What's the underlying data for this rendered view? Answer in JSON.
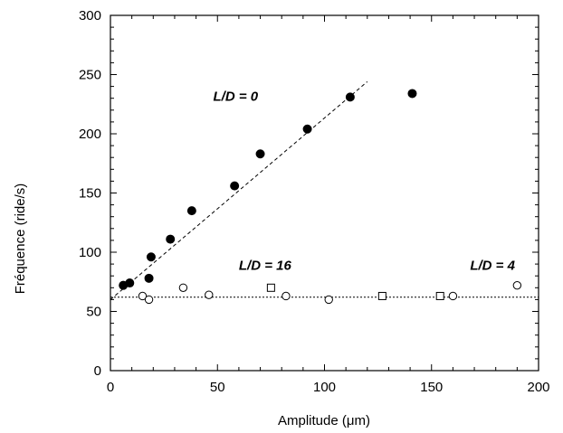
{
  "chart_data": {
    "type": "scatter",
    "xlabel": "Amplitude (μm)",
    "ylabel": "Fréquence (ride/s)",
    "xlim": [
      0,
      200
    ],
    "ylim": [
      0,
      300
    ],
    "x_ticks": [
      0,
      50,
      100,
      150,
      200
    ],
    "y_ticks": [
      0,
      50,
      100,
      150,
      200,
      250,
      300
    ],
    "grid": false,
    "series": [
      {
        "name": "L/D = 0",
        "marker": "filled-circle",
        "color": "#000000",
        "x": [
          6,
          9,
          18,
          19,
          28,
          38,
          58,
          70,
          92,
          112,
          141
        ],
        "y": [
          72,
          74,
          78,
          96,
          111,
          135,
          156,
          183,
          204,
          231,
          234
        ]
      },
      {
        "name": "L/D = 16",
        "marker": "open-circle",
        "color": "#000000",
        "x": [
          15,
          18,
          34,
          46,
          82,
          102,
          160,
          190
        ],
        "y": [
          63,
          60,
          70,
          64,
          63,
          60,
          63,
          72
        ]
      },
      {
        "name": "L/D = 4",
        "marker": "open-square",
        "color": "#000000",
        "x": [
          75,
          127,
          154
        ],
        "y": [
          70,
          63,
          63
        ]
      }
    ],
    "fits": [
      {
        "for": "L/D = 0",
        "style": "dashed",
        "x": [
          0,
          120
        ],
        "y": [
          60,
          244
        ]
      },
      {
        "for": "L/D = 16 / L/D = 4",
        "style": "dotted",
        "x": [
          0,
          200
        ],
        "y": [
          62,
          62
        ]
      }
    ],
    "annotations": [
      {
        "text": "L/D = 0",
        "x": 48,
        "y": 228
      },
      {
        "text": "L/D = 16",
        "x": 60,
        "y": 85
      },
      {
        "text": "L/D = 4",
        "x": 168,
        "y": 85
      }
    ]
  }
}
